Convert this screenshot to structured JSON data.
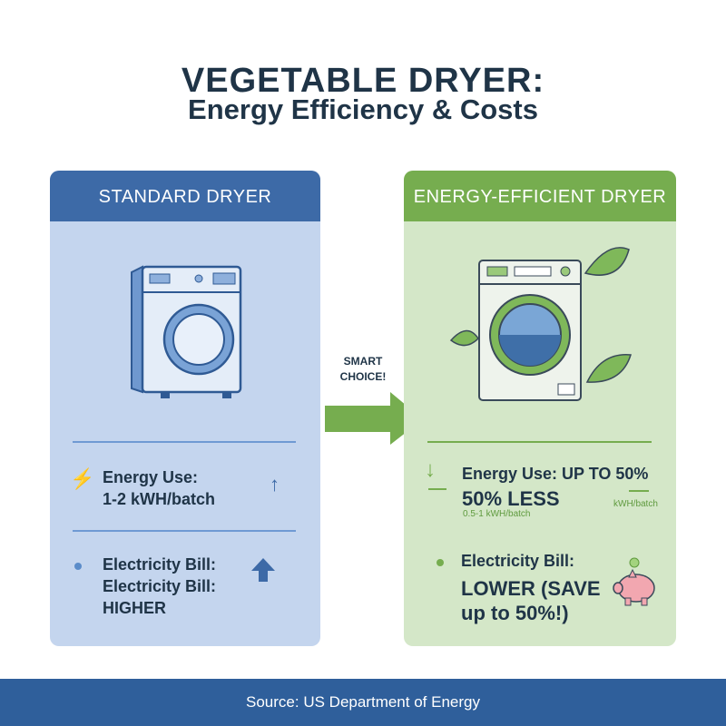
{
  "title": {
    "line1": "VEGETABLE DRYER:",
    "line2": "Energy Efficiency & Costs"
  },
  "colors": {
    "standard": "#3d6aa7",
    "efficient": "#76ad4f",
    "footer": "#2f5f9b"
  },
  "standard": {
    "header": "STANDARD DRYER",
    "energy_label": "Energy Use:",
    "energy_value": "1-2 kWH/batch",
    "bill_label": "Electricity Bill:",
    "bill_label_repeat": "Electricity Bill:",
    "bill_value": "HIGHER"
  },
  "arrow": {
    "label_line1": "SMART",
    "label_line2": "CHOICE!"
  },
  "efficient": {
    "header": "ENERGY-EFFICIENT DRYER",
    "energy_label": "Energy Use: UP TO 50%",
    "energy_value": "50% LESS",
    "energy_sub": "0.5-1 kWH/batch",
    "energy_unit": "kWH/batch",
    "bill_label": "Electricity Bill:",
    "bill_value_line1": "LOWER (SAVE",
    "bill_value_line2": "up to 50%!)"
  },
  "footer": {
    "source": "Source: US Department of Energy"
  }
}
